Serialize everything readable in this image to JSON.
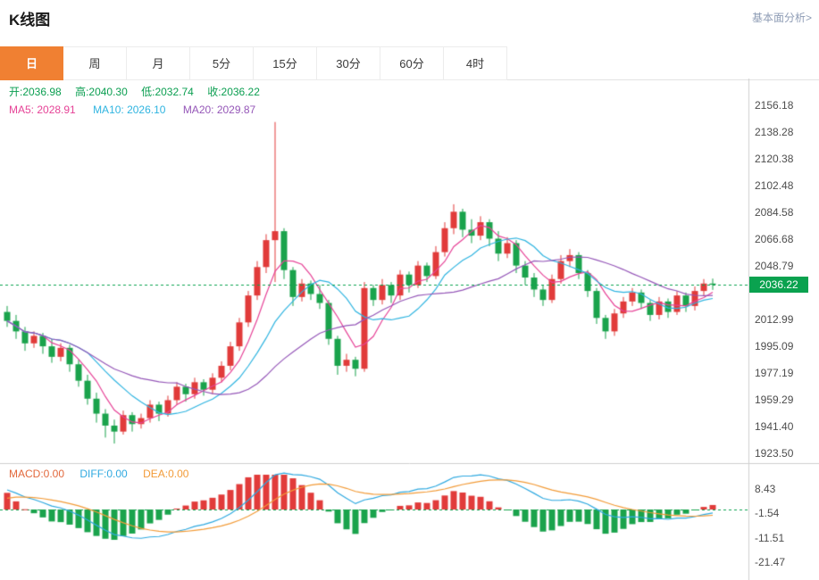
{
  "header": {
    "title": "K线图",
    "link_label": "基本面分析>"
  },
  "tabs": {
    "items": [
      "日",
      "周",
      "月",
      "5分",
      "15分",
      "30分",
      "60分",
      "4时"
    ],
    "active": "日"
  },
  "ohlc": {
    "open": "开:2036.98",
    "high": "高:2040.30",
    "low": "低:2032.74",
    "close": "收:2036.22"
  },
  "ma": {
    "ma5": "MA5: 2028.91",
    "ma10": "MA10: 2026.10",
    "ma20": "MA20: 2029.87"
  },
  "macd_row": {
    "macd": "MACD:0.00",
    "diff": "DIFF:0.00",
    "dea": "DEA:0.00"
  },
  "colors": {
    "up": "#e13b3a",
    "down": "#1aa34c",
    "ma5": "#e64397",
    "ma10": "#2fb4e0",
    "ma20": "#9557b8",
    "diff_line": "#2fa9e0",
    "dea_line": "#f29b38",
    "macd_label": "#e2683c",
    "price_green": "#0aa24f",
    "tab_active": "#f08032",
    "axis_line": "#cfcfcf"
  },
  "chart_data": {
    "type": "candlestick",
    "title": "K线图",
    "legend_position": "top-left",
    "grid": false,
    "panels": [
      {
        "name": "price",
        "y_axis_labels": [
          "2156.18",
          "2138.28",
          "2120.38",
          "2102.48",
          "2084.58",
          "2066.68",
          "2048.79",
          "2012.99",
          "1995.09",
          "1977.19",
          "1959.29",
          "1941.40",
          "1923.50"
        ],
        "y_axis_step": 17.9,
        "current_price": 2036.22,
        "current_price_label": "2036.22",
        "ma_lines": [
          {
            "name": "MA5",
            "period": 5,
            "display_value": 2028.91
          },
          {
            "name": "MA10",
            "period": 10,
            "display_value": 2026.1
          },
          {
            "name": "MA20",
            "period": 20,
            "display_value": 2029.87
          }
        ],
        "last_ohlc": {
          "open": 2036.98,
          "high": 2040.3,
          "low": 2032.74,
          "close": 2036.22
        },
        "candles": [
          [
            2018,
            2022,
            2008,
            2012
          ],
          [
            2012,
            2016,
            2000,
            2005
          ],
          [
            2005,
            2008,
            1992,
            1997
          ],
          [
            1997,
            2005,
            1994,
            2002
          ],
          [
            2002,
            2004,
            1990,
            1995
          ],
          [
            1995,
            2000,
            1984,
            1988
          ],
          [
            1988,
            1997,
            1985,
            1994
          ],
          [
            1994,
            1996,
            1978,
            1983
          ],
          [
            1983,
            1986,
            1968,
            1972
          ],
          [
            1972,
            1976,
            1956,
            1960
          ],
          [
            1960,
            1964,
            1944,
            1950
          ],
          [
            1950,
            1953,
            1934,
            1942
          ],
          [
            1942,
            1946,
            1930,
            1938
          ],
          [
            1938,
            1952,
            1936,
            1949
          ],
          [
            1949,
            1951,
            1938,
            1943
          ],
          [
            1943,
            1950,
            1940,
            1947
          ],
          [
            1947,
            1959,
            1944,
            1956
          ],
          [
            1956,
            1958,
            1945,
            1950
          ],
          [
            1950,
            1962,
            1948,
            1959
          ],
          [
            1959,
            1971,
            1956,
            1968
          ],
          [
            1968,
            1970,
            1958,
            1963
          ],
          [
            1963,
            1974,
            1960,
            1971
          ],
          [
            1971,
            1973,
            1962,
            1966
          ],
          [
            1966,
            1977,
            1963,
            1974
          ],
          [
            1974,
            1985,
            1971,
            1982
          ],
          [
            1982,
            1998,
            1979,
            1995
          ],
          [
            1995,
            2014,
            1992,
            2011
          ],
          [
            2011,
            2032,
            2008,
            2029
          ],
          [
            2029,
            2052,
            2026,
            2048
          ],
          [
            2048,
            2070,
            2044,
            2066
          ],
          [
            2066,
            2145,
            2038,
            2072
          ],
          [
            2072,
            2074,
            2040,
            2046
          ],
          [
            2046,
            2048,
            2022,
            2028
          ],
          [
            2028,
            2040,
            2025,
            2037
          ],
          [
            2037,
            2039,
            2026,
            2030
          ],
          [
            2030,
            2036,
            2020,
            2024
          ],
          [
            2024,
            2026,
            1996,
            2000
          ],
          [
            2000,
            2002,
            1976,
            1982
          ],
          [
            1982,
            1990,
            1978,
            1986
          ],
          [
            1986,
            1988,
            1975,
            1980
          ],
          [
            1980,
            2038,
            1978,
            2034
          ],
          [
            2034,
            2036,
            2022,
            2026
          ],
          [
            2026,
            2040,
            2023,
            2036
          ],
          [
            2036,
            2038,
            2024,
            2029
          ],
          [
            2029,
            2046,
            2026,
            2043
          ],
          [
            2043,
            2045,
            2031,
            2036
          ],
          [
            2036,
            2052,
            2034,
            2049
          ],
          [
            2049,
            2051,
            2038,
            2042
          ],
          [
            2042,
            2062,
            2040,
            2058
          ],
          [
            2058,
            2078,
            2055,
            2074
          ],
          [
            2074,
            2090,
            2070,
            2085
          ],
          [
            2085,
            2087,
            2068,
            2073
          ],
          [
            2073,
            2080,
            2064,
            2069
          ],
          [
            2069,
            2082,
            2066,
            2078
          ],
          [
            2078,
            2080,
            2062,
            2067
          ],
          [
            2067,
            2072,
            2052,
            2057
          ],
          [
            2057,
            2068,
            2054,
            2064
          ],
          [
            2064,
            2066,
            2044,
            2049
          ],
          [
            2049,
            2052,
            2036,
            2041
          ],
          [
            2041,
            2044,
            2028,
            2033
          ],
          [
            2033,
            2036,
            2022,
            2026
          ],
          [
            2026,
            2043,
            2024,
            2040
          ],
          [
            2040,
            2056,
            2037,
            2052
          ],
          [
            2052,
            2060,
            2048,
            2056
          ],
          [
            2056,
            2058,
            2040,
            2044
          ],
          [
            2044,
            2046,
            2028,
            2032
          ],
          [
            2032,
            2034,
            2010,
            2014
          ],
          [
            2014,
            2016,
            2000,
            2005
          ],
          [
            2005,
            2020,
            2002,
            2017
          ],
          [
            2017,
            2028,
            2014,
            2025
          ],
          [
            2025,
            2034,
            2022,
            2031
          ],
          [
            2031,
            2033,
            2020,
            2024
          ],
          [
            2024,
            2026,
            2012,
            2016
          ],
          [
            2016,
            2028,
            2013,
            2025
          ],
          [
            2025,
            2027,
            2014,
            2018
          ],
          [
            2018,
            2032,
            2016,
            2029
          ],
          [
            2029,
            2031,
            2018,
            2022
          ],
          [
            2022,
            2035,
            2019,
            2032
          ],
          [
            2032,
            2040,
            2029,
            2037
          ],
          [
            2036.98,
            2040.3,
            2032.74,
            2036.22
          ]
        ]
      },
      {
        "name": "macd",
        "y_axis_labels": [
          "8.43",
          "-1.54",
          "-11.51",
          "-21.47"
        ],
        "current_values": {
          "macd": 0.0,
          "diff": 0.0,
          "dea": 0.0
        },
        "derived_from": "price.candles"
      }
    ]
  }
}
